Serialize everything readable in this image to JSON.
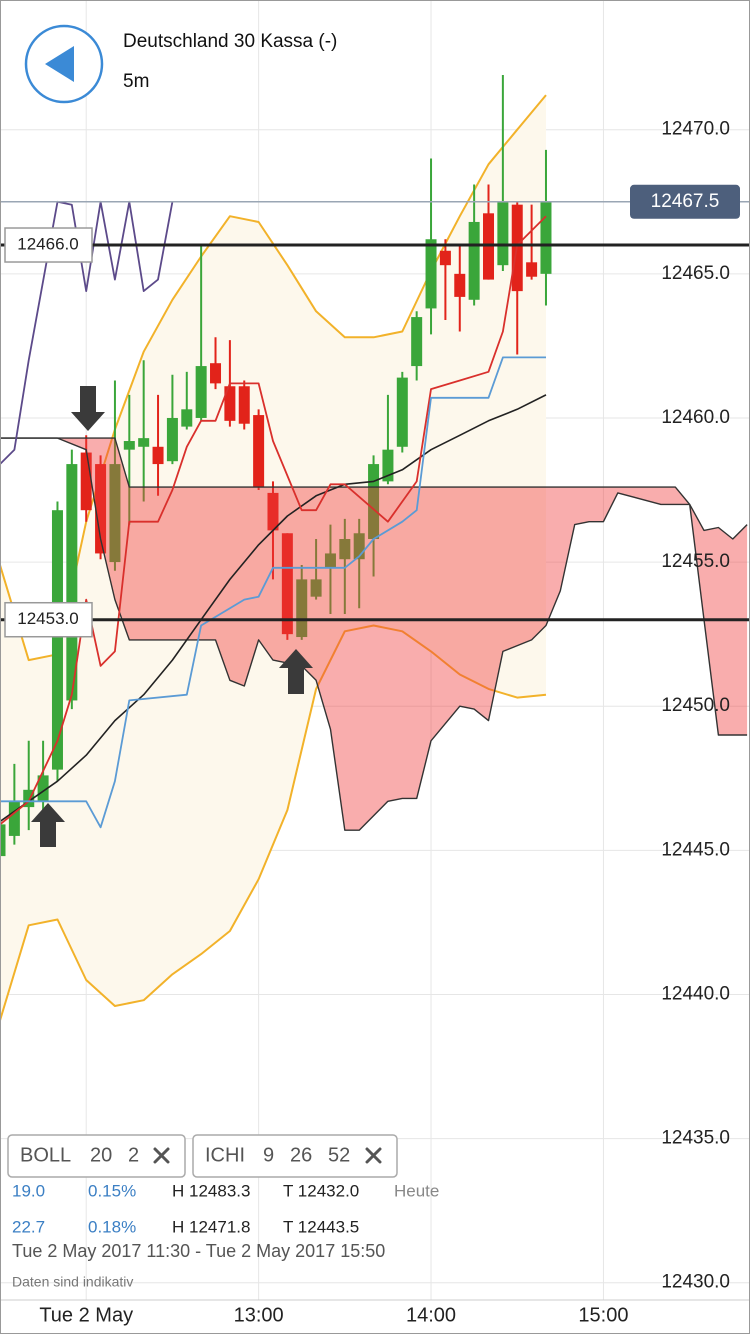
{
  "header": {
    "title": "Deutschland 30 Kassa (-)",
    "interval": "5m"
  },
  "chart_data": {
    "type": "candlestick",
    "xlim": [
      690,
      951
    ],
    "ylim": [
      12429.4,
      12474.5
    ],
    "xticks": [
      {
        "value": 720,
        "label": "Tue 2 May"
      },
      {
        "value": 780,
        "label": "13:00"
      },
      {
        "value": 840,
        "label": "14:00"
      },
      {
        "value": 900,
        "label": "15:00"
      }
    ],
    "yticks": [
      {
        "value": 12430,
        "label": "12430.0"
      },
      {
        "value": 12435,
        "label": "12435.0"
      },
      {
        "value": 12440,
        "label": "12440.0"
      },
      {
        "value": 12445,
        "label": "12445.0"
      },
      {
        "value": 12450,
        "label": "12450.0"
      },
      {
        "value": 12455,
        "label": "12455.0"
      },
      {
        "value": 12460,
        "label": "12460.0"
      },
      {
        "value": 12465,
        "label": "12465.0"
      },
      {
        "value": 12470,
        "label": "12470.0"
      }
    ],
    "grid": true,
    "colors": {
      "up": "#3aa63a",
      "down": "#e2231a"
    },
    "x": [
      690,
      695,
      700,
      705,
      710,
      715,
      720,
      725,
      730,
      735,
      740,
      745,
      750,
      755,
      760,
      765,
      770,
      775,
      780,
      785,
      790,
      795,
      800,
      805,
      810,
      815,
      820,
      825,
      830,
      835,
      840,
      845,
      850,
      855,
      860,
      865,
      870,
      875,
      880
    ],
    "open": [
      12444.8,
      12445.5,
      12446.5,
      12446.7,
      12447.8,
      12450.2,
      12458.8,
      12458.4,
      12455.0,
      12458.9,
      12459.0,
      12459.0,
      12458.5,
      12459.7,
      12460.0,
      12461.9,
      12461.1,
      12461.1,
      12460.1,
      12457.4,
      12456.0,
      12452.4,
      12453.8,
      12454.8,
      12455.1,
      12455.1,
      12455.8,
      12457.8,
      12459.0,
      12461.8,
      12463.8,
      12465.8,
      12465.0,
      12464.1,
      12467.1,
      12465.3,
      12467.4,
      12465.4,
      12465.0
    ],
    "high": [
      12446.2,
      12448.0,
      12448.8,
      12448.8,
      12457.1,
      12458.9,
      12459.4,
      12458.7,
      12461.3,
      12460.8,
      12462.0,
      12460.8,
      12461.5,
      12461.6,
      12466.0,
      12462.8,
      12462.7,
      12461.3,
      12460.3,
      12457.8,
      12456.0,
      12454.9,
      12455.8,
      12456.3,
      12456.5,
      12456.5,
      12458.7,
      12460.8,
      12461.6,
      12463.7,
      12469.0,
      12466.2,
      12466.0,
      12468.1,
      12468.1,
      12471.9,
      12467.5,
      12467.4,
      12469.3
    ],
    "low": [
      12443.6,
      12445.2,
      12445.7,
      12446.4,
      12447.4,
      12449.9,
      12456.4,
      12455.1,
      12454.7,
      12456.3,
      12457.1,
      12457.3,
      12458.4,
      12459.6,
      12459.9,
      12461.0,
      12459.7,
      12459.6,
      12457.5,
      12454.4,
      12452.3,
      12452.3,
      12453.7,
      12453.2,
      12453.2,
      12453.4,
      12454.5,
      12457.7,
      12458.8,
      12461.3,
      12462.9,
      12463.4,
      12463.0,
      12463.9,
      12464.8,
      12465.1,
      12462.2,
      12464.8,
      12463.9
    ],
    "close": [
      12445.9,
      12446.7,
      12447.1,
      12447.6,
      12456.8,
      12458.4,
      12456.8,
      12455.3,
      12458.4,
      12459.2,
      12459.3,
      12458.4,
      12460.0,
      12460.3,
      12461.8,
      12461.2,
      12459.9,
      12459.8,
      12457.6,
      12456.1,
      12452.5,
      12454.4,
      12454.4,
      12455.3,
      12455.8,
      12456.0,
      12458.4,
      12458.9,
      12461.4,
      12463.5,
      12466.2,
      12465.3,
      12464.2,
      12466.8,
      12464.8,
      12467.5,
      12464.4,
      12464.9,
      12467.5
    ],
    "last_price": {
      "value": 12467.5,
      "label": "12467.5"
    },
    "levels": [
      {
        "value": 12466,
        "label": "12466.0"
      },
      {
        "value": 12453,
        "label": "12453.0"
      }
    ],
    "bands": {
      "x": [
        690,
        700,
        710,
        720,
        730,
        740,
        750,
        760,
        770,
        780,
        790,
        800,
        810,
        820,
        830,
        840,
        850,
        860,
        870,
        880
      ],
      "upper": [
        12454.9,
        12451.6,
        12451.8,
        12456.4,
        12459.6,
        12462.3,
        12464.1,
        12465.6,
        12467.0,
        12466.8,
        12465.3,
        12463.7,
        12462.8,
        12462.8,
        12463.0,
        12465.1,
        12467.0,
        12468.8,
        12470.0,
        12471.2
      ],
      "middle": [
        12446.0,
        12446.7,
        12447.4,
        12448.3,
        12449.5,
        12450.4,
        12451.6,
        12453.0,
        12454.4,
        12455.6,
        12456.6,
        12457.3,
        12457.7,
        12457.8,
        12458.2,
        12458.9,
        12459.4,
        12459.9,
        12460.3,
        12460.8
      ],
      "lower": [
        12439.1,
        12442.4,
        12442.6,
        12440.5,
        12439.6,
        12439.8,
        12440.7,
        12441.4,
        12442.2,
        12444.0,
        12446.4,
        12450.6,
        12452.6,
        12452.8,
        12452.6,
        12451.9,
        12451.1,
        12450.6,
        12450.3,
        12450.4
      ],
      "band_color": "#f2b22a",
      "middle_color": "#222222",
      "fill": "#fdf8ec"
    },
    "lines": [
      {
        "color": "#d9302c",
        "x": [
          690,
          700,
          710,
          715,
          720,
          725,
          730,
          735,
          745,
          750,
          755,
          760,
          765,
          770,
          780,
          785,
          795,
          800,
          805,
          810,
          825,
          835,
          840,
          850,
          860,
          865,
          870,
          880
        ],
        "values": [
          12445.9,
          12446.7,
          12448.8,
          12450.4,
          12453.7,
          12451.4,
          12451.9,
          12456.4,
          12456.4,
          12457.5,
          12459.0,
          12459.9,
          12459.9,
          12461.2,
          12461.2,
          12459.2,
          12456.8,
          12456.8,
          12457.7,
          12457.7,
          12456.4,
          12457.8,
          12461.0,
          12461.3,
          12461.6,
          12463.0,
          12466.0,
          12467.0
        ]
      },
      {
        "color": "#5b9bd5",
        "x": [
          690,
          720,
          725,
          730,
          735,
          755,
          760,
          775,
          780,
          785,
          810,
          815,
          820,
          830,
          835,
          840,
          860,
          865,
          880
        ],
        "values": [
          12446.7,
          12446.7,
          12445.8,
          12447.4,
          12450.2,
          12450.4,
          12452.8,
          12453.7,
          12453.8,
          12454.8,
          12454.8,
          12455.2,
          12455.8,
          12456.4,
          12456.8,
          12460.7,
          12460.7,
          12462.1,
          12462.1
        ]
      },
      {
        "color": "#5c4a8a",
        "x": [
          690,
          695,
          700,
          710,
          715,
          720,
          725,
          730,
          735,
          740,
          745,
          750
        ],
        "values": [
          12458.4,
          12458.9,
          12462.0,
          12467.5,
          12467.4,
          12464.4,
          12467.5,
          12464.8,
          12467.5,
          12464.4,
          12464.8,
          12467.5
        ]
      }
    ],
    "cloud": {
      "span_a": {
        "x": [
          690,
          710,
          720,
          725,
          730,
          735,
          760,
          765,
          770,
          775,
          780,
          785,
          795,
          800,
          805,
          810,
          815,
          825,
          830,
          835,
          840,
          850,
          855,
          860,
          865,
          875,
          880,
          885,
          890,
          895,
          900,
          905,
          920,
          930,
          935,
          940,
          945,
          950
        ],
        "values": [
          12459.3,
          12459.3,
          12458.9,
          12455.8,
          12453.7,
          12452.3,
          12452.3,
          12452.3,
          12450.9,
          12450.7,
          12452.3,
          12451.6,
          12451.4,
          12450.9,
          12449.2,
          12445.7,
          12445.7,
          12446.7,
          12446.8,
          12446.8,
          12448.8,
          12450.0,
          12449.9,
          12449.5,
          12451.9,
          12452.3,
          12452.8,
          12454.0,
          12456.3,
          12456.4,
          12456.4,
          12457.4,
          12457.0,
          12457.0,
          12456.1,
          12456.2,
          12455.8,
          12456.3
        ]
      },
      "span_b": {
        "x": [
          690,
          730,
          735,
          925,
          930,
          935,
          940,
          950
        ],
        "values": [
          12459.3,
          12459.3,
          12457.6,
          12457.6,
          12457.0,
          12453.0,
          12449.0,
          12449.0
        ]
      },
      "up_color": "rgba(60,160,60,0.36)",
      "down_color": "rgba(240,60,60,0.42)",
      "line_color": "#333333"
    }
  },
  "panel": {
    "indicators": [
      {
        "name": "BOLL",
        "params": [
          20,
          2
        ]
      },
      {
        "name": "ICHI",
        "params": [
          9,
          26,
          52
        ]
      }
    ],
    "stats": [
      [
        "19.0",
        "0.15%",
        "H 12483.3",
        "T 12432.0",
        "Heute"
      ],
      [
        "22.7",
        "0.18%",
        "H 12471.8",
        "T 12443.5"
      ]
    ],
    "range": "Tue 2 May 2017 11:30 - Tue 2 May 2017 15:50",
    "note": "Daten sind indikativ"
  }
}
